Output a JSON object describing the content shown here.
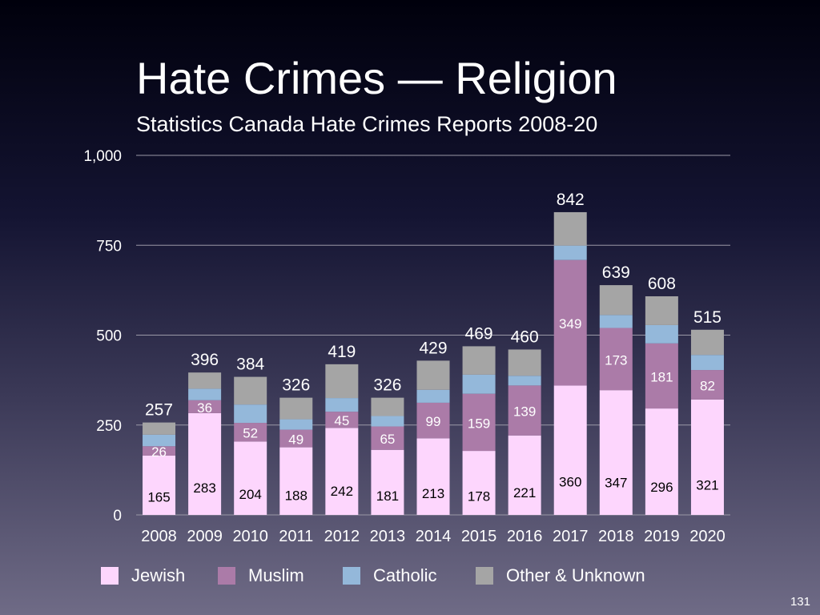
{
  "chart_data": {
    "type": "stacked-bar",
    "title": "Hate Crimes — Religion",
    "subtitle": "Statistics Canada Hate Crimes Reports 2008-20",
    "categories": [
      "2008",
      "2009",
      "2010",
      "2011",
      "2012",
      "2013",
      "2014",
      "2015",
      "2016",
      "2017",
      "2018",
      "2019",
      "2020"
    ],
    "series": [
      {
        "name": "Jewish",
        "color": "#fdd6fd",
        "values": [
          165,
          283,
          204,
          188,
          242,
          181,
          213,
          178,
          221,
          360,
          347,
          296,
          321
        ],
        "labeled": true
      },
      {
        "name": "Muslim",
        "color": "#ab7ba8",
        "values": [
          26,
          36,
          52,
          49,
          45,
          65,
          99,
          159,
          139,
          349,
          173,
          181,
          82
        ],
        "labeled": true
      },
      {
        "name": "Catholic",
        "color": "#94b8da",
        "values": [
          32,
          32,
          51,
          29,
          38,
          29,
          36,
          53,
          27,
          40,
          36,
          51,
          42
        ],
        "labeled": false
      },
      {
        "name": "Other & Unknown",
        "color": "#a5a5a5",
        "values": [
          34,
          45,
          77,
          60,
          94,
          51,
          81,
          79,
          73,
          93,
          83,
          80,
          70
        ],
        "labeled": false
      }
    ],
    "totals": [
      257,
      396,
      384,
      326,
      419,
      326,
      429,
      469,
      460,
      842,
      639,
      608,
      515
    ],
    "yticks": [
      "0",
      "250",
      "500",
      "750",
      "1,000"
    ],
    "ytick_values": [
      0,
      250,
      500,
      750,
      1000
    ],
    "ylim": [
      0,
      1000
    ],
    "grid": true,
    "legend": "bottom"
  },
  "page_number": "131"
}
